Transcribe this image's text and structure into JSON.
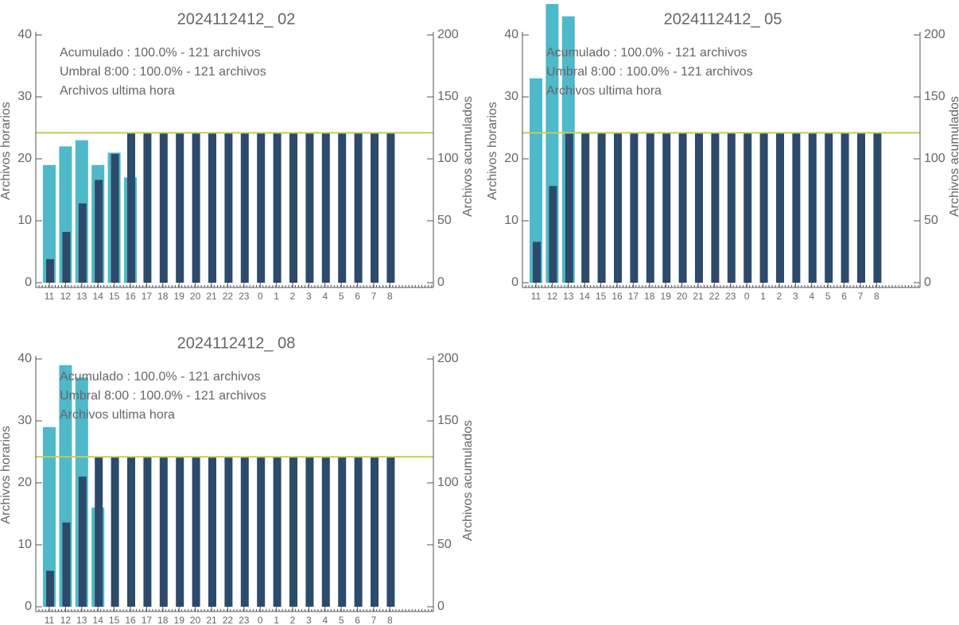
{
  "chart_data": [
    {
      "type": "bar",
      "title": "2024112412_ 02",
      "ylabel": "Archivos horarios",
      "y2label": "Archivos acumulados",
      "categories": [
        "11",
        "12",
        "13",
        "14",
        "15",
        "16",
        "17",
        "18",
        "19",
        "20",
        "21",
        "22",
        "23",
        "0",
        "1",
        "2",
        "3",
        "4",
        "5",
        "6",
        "7",
        "8"
      ],
      "series": [
        {
          "name": "Archivos ultima hora",
          "color": "#4fb8c9",
          "values": [
            19,
            22,
            23,
            19,
            21,
            17,
            0,
            0,
            0,
            0,
            0,
            0,
            0,
            0,
            0,
            0,
            0,
            0,
            0,
            0,
            0,
            0
          ]
        },
        {
          "name": "Acumulado : 100.0% - 121 archivos",
          "color": "#2d4a6b",
          "axis": "y2",
          "values": [
            19,
            41,
            64,
            83,
            104,
            121,
            121,
            121,
            121,
            121,
            121,
            121,
            121,
            121,
            121,
            121,
            121,
            121,
            121,
            121,
            121,
            121
          ]
        }
      ],
      "threshold": {
        "label": "Umbral 8:00 : 100.0% - 121 archivos",
        "value": 121,
        "color": "#c5cc5a",
        "axis": "y2"
      },
      "ylim": [
        0,
        40
      ],
      "yticks": [
        0,
        10,
        20,
        30,
        40
      ],
      "y2lim": [
        0,
        200
      ],
      "y2ticks": [
        0,
        50,
        100,
        150,
        200
      ]
    },
    {
      "type": "bar",
      "title": "2024112412_ 05",
      "ylabel": "Archivos horarios",
      "y2label": "Archivos acumulados",
      "categories": [
        "11",
        "12",
        "13",
        "14",
        "15",
        "16",
        "17",
        "18",
        "19",
        "20",
        "21",
        "22",
        "23",
        "0",
        "1",
        "2",
        "3",
        "4",
        "5",
        "6",
        "7",
        "8"
      ],
      "series": [
        {
          "name": "Archivos ultima hora",
          "color": "#4fb8c9",
          "values": [
            33,
            45,
            43,
            0,
            0,
            0,
            0,
            0,
            0,
            0,
            0,
            0,
            0,
            0,
            0,
            0,
            0,
            0,
            0,
            0,
            0,
            0
          ]
        },
        {
          "name": "Acumulado : 100.0% - 121 archivos",
          "color": "#2d4a6b",
          "axis": "y2",
          "values": [
            33,
            78,
            121,
            121,
            121,
            121,
            121,
            121,
            121,
            121,
            121,
            121,
            121,
            121,
            121,
            121,
            121,
            121,
            121,
            121,
            121,
            121
          ]
        }
      ],
      "threshold": {
        "label": "Umbral 8:00 : 100.0% - 121 archivos",
        "value": 121,
        "color": "#c5cc5a",
        "axis": "y2"
      },
      "ylim": [
        0,
        40
      ],
      "yticks": [
        0,
        10,
        20,
        30,
        40
      ],
      "y2lim": [
        0,
        200
      ],
      "y2ticks": [
        0,
        50,
        100,
        150,
        200
      ]
    },
    {
      "type": "bar",
      "title": "2024112412_ 08",
      "ylabel": "Archivos horarios",
      "y2label": "Archivos acumulados",
      "categories": [
        "11",
        "12",
        "13",
        "14",
        "15",
        "16",
        "17",
        "18",
        "19",
        "20",
        "21",
        "22",
        "23",
        "0",
        "1",
        "2",
        "3",
        "4",
        "5",
        "6",
        "7",
        "8"
      ],
      "series": [
        {
          "name": "Archivos ultima hora",
          "color": "#4fb8c9",
          "values": [
            29,
            39,
            37,
            16,
            0,
            0,
            0,
            0,
            0,
            0,
            0,
            0,
            0,
            0,
            0,
            0,
            0,
            0,
            0,
            0,
            0,
            0
          ]
        },
        {
          "name": "Acumulado : 100.0% - 121 archivos",
          "color": "#2d4a6b",
          "axis": "y2",
          "values": [
            29,
            68,
            105,
            121,
            121,
            121,
            121,
            121,
            121,
            121,
            121,
            121,
            121,
            121,
            121,
            121,
            121,
            121,
            121,
            121,
            121,
            121
          ]
        }
      ],
      "threshold": {
        "label": "Umbral 8:00 : 100.0% - 121 archivos",
        "value": 121,
        "color": "#c5cc5a",
        "axis": "y2"
      },
      "ylim": [
        0,
        40
      ],
      "yticks": [
        0,
        10,
        20,
        30,
        40
      ],
      "y2lim": [
        0,
        200
      ],
      "y2ticks": [
        0,
        50,
        100,
        150,
        200
      ]
    }
  ]
}
